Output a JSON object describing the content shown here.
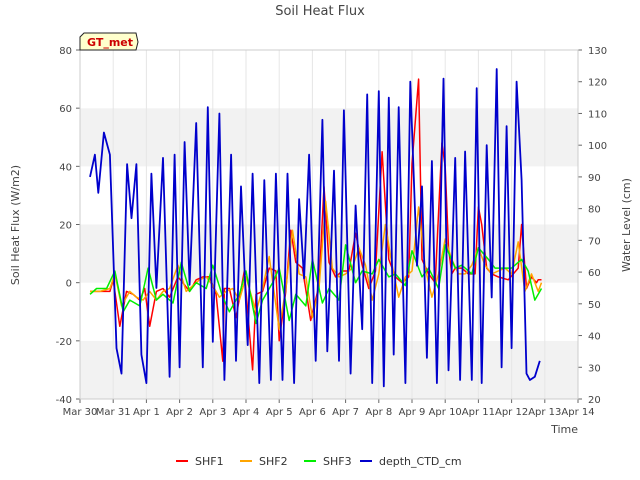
{
  "chart_data": {
    "type": "line",
    "title": "Soil Heat Flux",
    "xlabel": "Time",
    "ylabel": "Soil Heat Flux (W/m2)",
    "y2label": "Water Level (cm)",
    "badge": "GT_met",
    "x_ticks": [
      "Mar 30",
      "Mar 31",
      "Apr 1",
      "Apr 2",
      "Apr 3",
      "Apr 4",
      "Apr 5",
      "Apr 6",
      "Apr 7",
      "Apr 8",
      "Apr 9",
      "Apr 10",
      "Apr 11",
      "Apr 12",
      "Apr 13",
      "Apr 14"
    ],
    "x_range_days": [
      0,
      15
    ],
    "ylim": [
      -40,
      80
    ],
    "y_ticks": [
      -40,
      -20,
      0,
      20,
      40,
      60,
      80
    ],
    "y2lim": [
      20,
      130
    ],
    "y2_ticks": [
      20,
      30,
      40,
      50,
      60,
      70,
      80,
      90,
      100,
      110,
      120,
      130
    ],
    "legend": [
      {
        "name": "SHF1",
        "color": "#ff0000"
      },
      {
        "name": "SHF2",
        "color": "#ffa500"
      },
      {
        "name": "SHF3",
        "color": "#00ee00"
      },
      {
        "name": "depth_CTD_cm",
        "color": "#0000cc"
      }
    ],
    "series": [
      {
        "name": "SHF1",
        "axis": "left",
        "color": "#ff0000",
        "x": [
          0.3,
          0.6,
          0.9,
          1.0,
          1.2,
          1.4,
          1.6,
          1.8,
          1.95,
          2.1,
          2.3,
          2.5,
          2.7,
          2.95,
          3.1,
          3.3,
          3.5,
          3.7,
          3.9,
          4.1,
          4.3,
          4.35,
          4.5,
          4.7,
          4.95,
          5.2,
          5.3,
          5.5,
          5.7,
          5.9,
          6.0,
          6.2,
          6.35,
          6.5,
          6.7,
          6.95,
          7.2,
          7.35,
          7.5,
          7.7,
          7.9,
          8.1,
          8.3,
          8.5,
          8.7,
          8.9,
          9.1,
          9.3,
          9.5,
          9.7,
          9.9,
          10.0,
          10.2,
          10.3,
          10.5,
          10.7,
          10.9,
          11.0,
          11.1,
          11.2,
          11.3,
          11.5,
          11.7,
          11.9,
          12.0,
          12.1,
          12.25,
          12.4,
          12.6,
          12.9,
          13.2,
          13.3,
          13.45,
          13.6,
          13.75,
          13.8,
          13.9
        ],
        "values": [
          -3,
          -3,
          -3,
          1,
          -15,
          -3,
          -4,
          -6,
          -2,
          -15,
          -3,
          -2,
          -5,
          2,
          0,
          -3,
          1,
          2,
          2,
          -4,
          -27,
          -2,
          -2,
          -12,
          4,
          -30,
          -4,
          -3,
          5,
          4,
          -20,
          -3,
          18,
          7,
          5,
          -13,
          -1,
          33,
          7,
          2,
          4,
          4,
          17,
          6,
          -2,
          4,
          45,
          8,
          2,
          0,
          2,
          41,
          70,
          8,
          3,
          0,
          48,
          40,
          12,
          3,
          5,
          5,
          3,
          3,
          26,
          20,
          5,
          3,
          2,
          1,
          5,
          20,
          -2,
          2,
          0,
          1,
          1
        ]
      },
      {
        "name": "SHF2",
        "axis": "left",
        "color": "#ffa500",
        "x": [
          0.3,
          0.6,
          0.9,
          1.05,
          1.25,
          1.5,
          1.7,
          1.9,
          2.1,
          2.3,
          2.5,
          2.7,
          2.95,
          3.2,
          3.4,
          3.6,
          3.8,
          4.0,
          4.2,
          4.4,
          4.6,
          4.8,
          5.0,
          5.3,
          5.5,
          5.7,
          6.0,
          6.2,
          6.4,
          6.6,
          6.8,
          7.0,
          7.2,
          7.4,
          7.6,
          7.8,
          8.0,
          8.2,
          8.4,
          8.6,
          8.8,
          9.0,
          9.2,
          9.4,
          9.6,
          9.8,
          10.0,
          10.2,
          10.4,
          10.6,
          10.8,
          11.0,
          11.2,
          11.4,
          11.6,
          11.8,
          12.0,
          12.2,
          12.4,
          12.6,
          12.8,
          13.0,
          13.2,
          13.4,
          13.6,
          13.8,
          13.9
        ],
        "values": [
          -3,
          -3,
          -2,
          3,
          -8,
          -3,
          -5,
          -6,
          -3,
          -6,
          -3,
          -2,
          6,
          -3,
          -1,
          1,
          2,
          -1,
          -5,
          -3,
          -2,
          -6,
          2,
          -10,
          -2,
          9,
          -16,
          -2,
          18,
          3,
          2,
          -12,
          -2,
          28,
          5,
          2,
          3,
          5,
          12,
          6,
          -6,
          3,
          20,
          6,
          -5,
          2,
          4,
          26,
          5,
          -5,
          3,
          15,
          8,
          3,
          3,
          6,
          12,
          6,
          3,
          4,
          5,
          3,
          14,
          -3,
          3,
          -3,
          0
        ]
      },
      {
        "name": "SHF3",
        "axis": "left",
        "color": "#00ee00",
        "x": [
          0.3,
          0.5,
          0.8,
          1.05,
          1.3,
          1.5,
          1.8,
          2.05,
          2.3,
          2.5,
          2.8,
          3.05,
          3.3,
          3.5,
          3.8,
          4.0,
          4.3,
          4.5,
          4.8,
          5.0,
          5.3,
          5.5,
          5.8,
          6.0,
          6.3,
          6.5,
          6.8,
          7.0,
          7.3,
          7.5,
          7.8,
          8.0,
          8.3,
          8.5,
          8.8,
          9.0,
          9.3,
          9.5,
          9.8,
          10.0,
          10.3,
          10.5,
          10.8,
          11.0,
          11.3,
          11.5,
          11.8,
          12.0,
          12.3,
          12.5,
          12.8,
          13.0,
          13.3,
          13.5,
          13.7,
          13.9
        ],
        "values": [
          -4,
          -2,
          -2,
          4,
          -10,
          -6,
          -8,
          5,
          -6,
          -4,
          -7,
          7,
          -3,
          0,
          -2,
          6,
          -5,
          -10,
          -4,
          4,
          -14,
          -6,
          0,
          5,
          -13,
          -4,
          -8,
          8,
          -7,
          -2,
          -6,
          13,
          0,
          4,
          3,
          8,
          2,
          3,
          -1,
          11,
          2,
          5,
          -2,
          13,
          5,
          6,
          3,
          12,
          8,
          5,
          5,
          5,
          8,
          4,
          -6,
          -2
        ]
      },
      {
        "name": "depth_CTD_cm",
        "axis": "right",
        "color": "#0000cc",
        "x": [
          0.3,
          0.45,
          0.55,
          0.72,
          0.9,
          1.1,
          1.25,
          1.42,
          1.55,
          1.7,
          1.85,
          2.0,
          2.15,
          2.3,
          2.5,
          2.7,
          2.85,
          3.0,
          3.15,
          3.3,
          3.5,
          3.7,
          3.85,
          4.0,
          4.2,
          4.35,
          4.55,
          4.7,
          4.85,
          5.05,
          5.2,
          5.4,
          5.55,
          5.75,
          5.9,
          6.1,
          6.25,
          6.45,
          6.6,
          6.75,
          6.9,
          7.1,
          7.3,
          7.45,
          7.65,
          7.8,
          7.95,
          8.15,
          8.3,
          8.5,
          8.65,
          8.8,
          9.0,
          9.15,
          9.3,
          9.45,
          9.6,
          9.8,
          9.95,
          10.15,
          10.3,
          10.45,
          10.6,
          10.75,
          10.95,
          11.1,
          11.3,
          11.45,
          11.6,
          11.8,
          11.95,
          12.1,
          12.25,
          12.4,
          12.55,
          12.7,
          12.85,
          13.0,
          13.15,
          13.3,
          13.45,
          13.55,
          13.7,
          13.85
        ],
        "values": [
          90,
          97,
          85,
          104,
          97,
          36,
          28,
          94,
          77,
          94,
          34,
          25,
          91,
          55,
          96,
          27,
          97,
          30,
          101,
          56,
          107,
          30,
          112,
          38,
          110,
          26,
          97,
          32,
          87,
          37,
          91,
          25,
          89,
          26,
          91,
          26,
          91,
          25,
          83,
          58,
          97,
          32,
          108,
          35,
          92,
          32,
          111,
          28,
          81,
          42,
          116,
          25,
          117,
          24,
          115,
          34,
          112,
          25,
          120,
          62,
          87,
          33,
          95,
          25,
          121,
          29,
          96,
          26,
          98,
          26,
          118,
          25,
          100,
          52,
          124,
          30,
          106,
          36,
          120,
          89,
          28,
          26,
          27,
          32
        ]
      }
    ]
  }
}
